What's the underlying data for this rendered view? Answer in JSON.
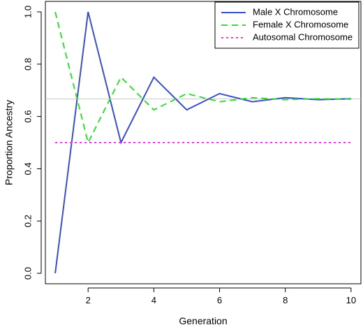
{
  "chart_data": {
    "type": "line",
    "title": "",
    "xlabel": "Generation",
    "ylabel": "Proportion Ancestry",
    "xlim": [
      0.7,
      10.3
    ],
    "ylim": [
      -0.04,
      1.04
    ],
    "xticks": [
      2,
      4,
      6,
      8,
      10
    ],
    "xtick_labels": [
      "2",
      "4",
      "6",
      "8",
      "10"
    ],
    "yticks": [
      0.0,
      0.2,
      0.4,
      0.6,
      0.8,
      1.0
    ],
    "ytick_labels": [
      "0.0",
      "0.2",
      "0.4",
      "0.6",
      "0.8",
      "1.0"
    ],
    "x": [
      1,
      2,
      3,
      4,
      5,
      6,
      7,
      8,
      9,
      10
    ],
    "legend_position": "top-right",
    "series": [
      {
        "name": "Male X Chromosome",
        "color": "#3b4fc4",
        "style": "solid",
        "values": [
          0.0,
          1.0,
          0.5,
          0.75,
          0.625,
          0.6875,
          0.65625,
          0.671875,
          0.6640625,
          0.66796875
        ]
      },
      {
        "name": "Female X Chromosome",
        "color": "#33dd33",
        "style": "dashed",
        "values": [
          1.0,
          0.5,
          0.75,
          0.625,
          0.6875,
          0.65625,
          0.671875,
          0.6640625,
          0.66796875,
          0.666
        ]
      },
      {
        "name": "Autosomal Chromosome",
        "color": "#ee33ee",
        "style": "dotted",
        "values": [
          0.5,
          0.5,
          0.5,
          0.5,
          0.5,
          0.5,
          0.5,
          0.5,
          0.5,
          0.5
        ]
      }
    ],
    "reference_line": {
      "y": 0.6667,
      "color": "#c8c8c8"
    }
  }
}
